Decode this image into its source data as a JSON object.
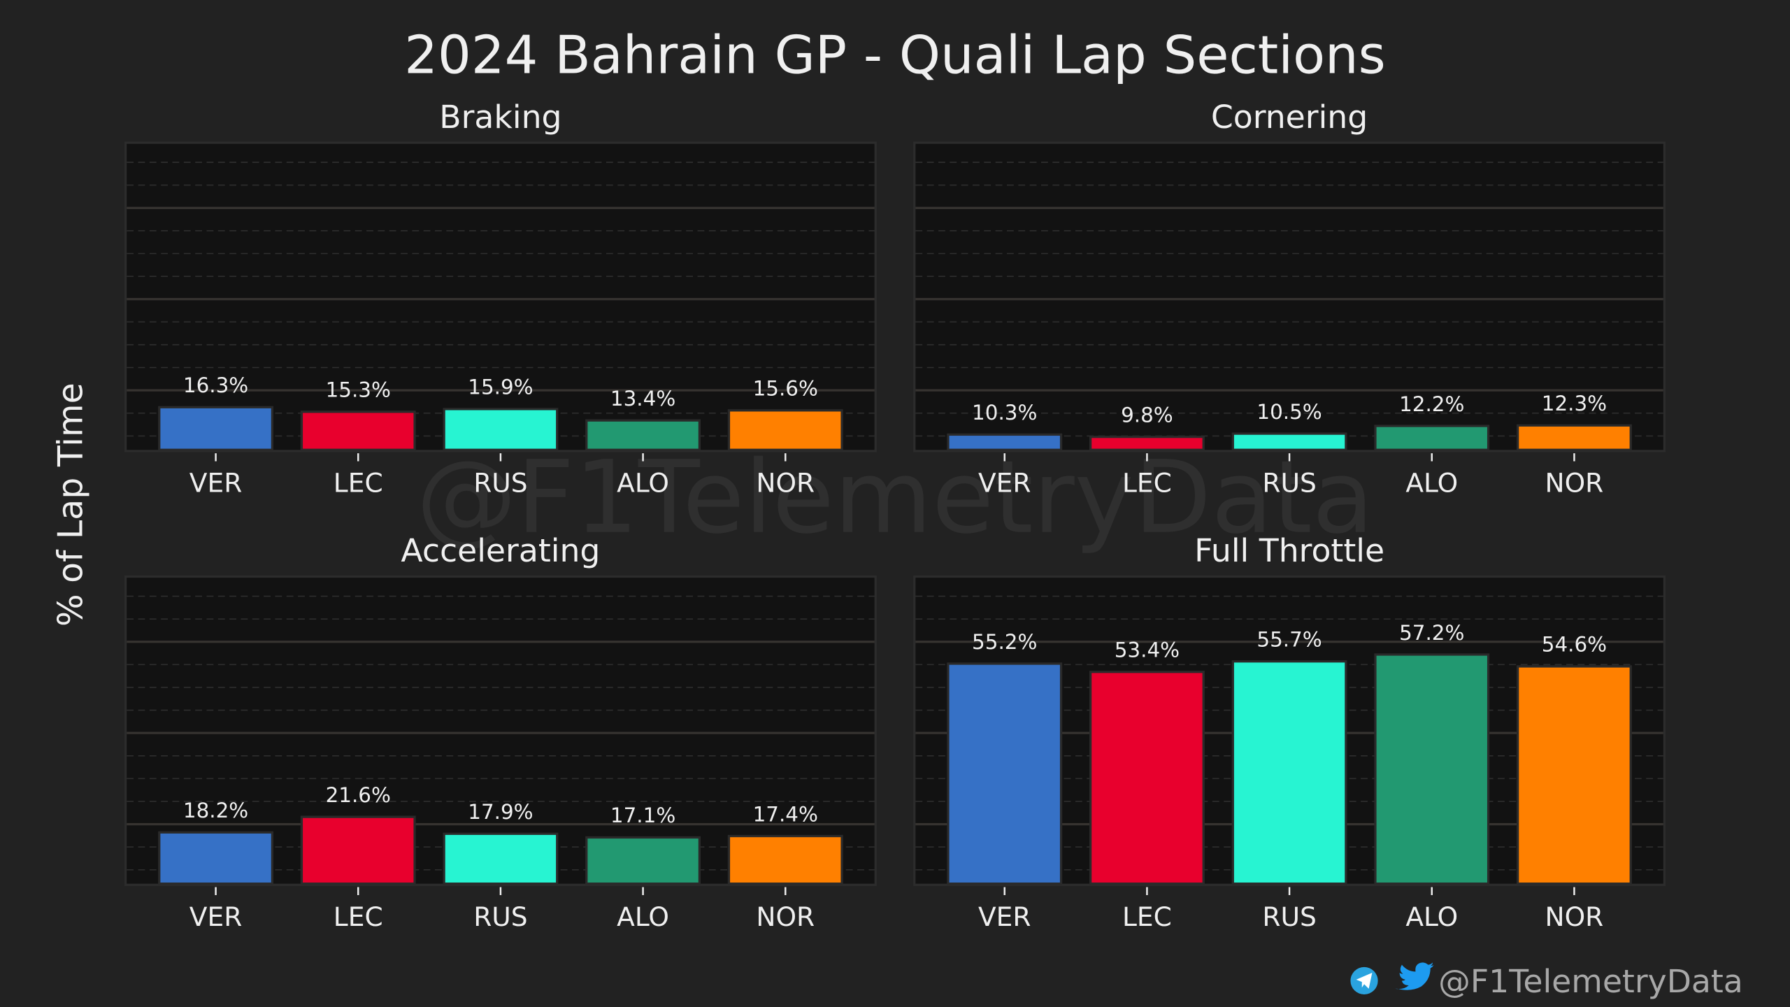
{
  "title": "2024 Bahrain GP - Quali Lap Sections",
  "ylabel": "% of Lap Time",
  "watermark": "@F1TelemetryData",
  "footer": {
    "handle": "@F1TelemetryData",
    "icons": [
      "telegram-icon",
      "twitter-icon"
    ]
  },
  "drivers": [
    "VER",
    "LEC",
    "RUS",
    "ALO",
    "NOR"
  ],
  "colors": {
    "VER": "#3671c6",
    "LEC": "#e8002d",
    "RUS": "#27f4d2",
    "ALO": "#229971",
    "NOR": "#ff8000"
  },
  "chart_data": [
    {
      "type": "bar",
      "title": "Braking",
      "categories": [
        "VER",
        "LEC",
        "RUS",
        "ALO",
        "NOR"
      ],
      "values": [
        16.3,
        15.3,
        15.9,
        13.4,
        15.6
      ],
      "labels": [
        "16.3%",
        "15.3%",
        "15.9%",
        "13.4%",
        "15.6%"
      ],
      "ylim": [
        6.7,
        74.3
      ],
      "major_ticks": [
        20,
        40,
        60
      ],
      "minor_step": 5,
      "grid": true
    },
    {
      "type": "bar",
      "title": "Cornering",
      "categories": [
        "VER",
        "LEC",
        "RUS",
        "ALO",
        "NOR"
      ],
      "values": [
        10.3,
        9.8,
        10.5,
        12.2,
        12.3
      ],
      "labels": [
        "10.3%",
        "9.8%",
        "10.5%",
        "12.2%",
        "12.3%"
      ],
      "ylim": [
        6.7,
        74.3
      ],
      "major_ticks": [
        20,
        40,
        60
      ],
      "minor_step": 5,
      "grid": true
    },
    {
      "type": "bar",
      "title": "Accelerating",
      "categories": [
        "VER",
        "LEC",
        "RUS",
        "ALO",
        "NOR"
      ],
      "values": [
        18.2,
        21.6,
        17.9,
        17.1,
        17.4
      ],
      "labels": [
        "18.2%",
        "21.6%",
        "17.9%",
        "17.1%",
        "17.4%"
      ],
      "ylim": [
        6.7,
        74.3
      ],
      "major_ticks": [
        20,
        40,
        60
      ],
      "minor_step": 5,
      "grid": true
    },
    {
      "type": "bar",
      "title": "Full Throttle",
      "categories": [
        "VER",
        "LEC",
        "RUS",
        "ALO",
        "NOR"
      ],
      "values": [
        55.2,
        53.4,
        55.7,
        57.2,
        54.6
      ],
      "labels": [
        "55.2%",
        "53.4%",
        "55.7%",
        "57.2%",
        "54.6%"
      ],
      "ylim": [
        6.7,
        74.3
      ],
      "major_ticks": [
        20,
        40,
        60
      ],
      "minor_step": 5,
      "grid": true
    }
  ]
}
